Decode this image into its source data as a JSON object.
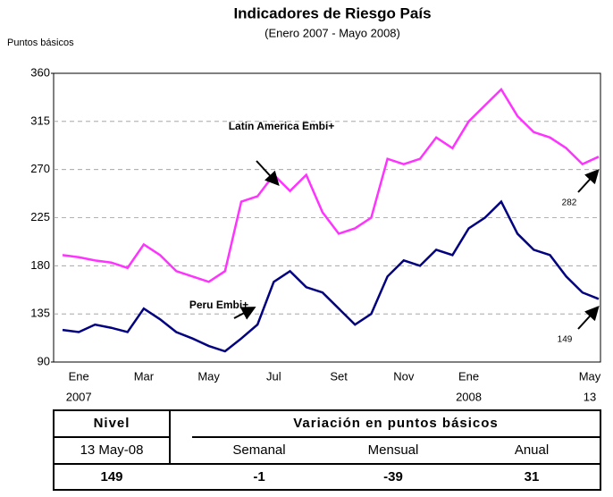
{
  "chart_data": {
    "type": "line",
    "title": "Indicadores de Riesgo País",
    "subtitle": "(Enero 2007 - Mayo 2008)",
    "y_label": "Puntos básicos",
    "categories": [
      null,
      [
        "Ene",
        "2007"
      ],
      null,
      null,
      null,
      [
        "Mar"
      ],
      null,
      null,
      null,
      [
        "May"
      ],
      null,
      null,
      null,
      [
        "Jul"
      ],
      null,
      null,
      null,
      [
        "Set"
      ],
      null,
      null,
      null,
      [
        "Nov"
      ],
      null,
      null,
      null,
      [
        "Ene",
        "2008"
      ],
      null,
      null,
      null,
      null,
      null,
      null,
      null,
      [
        "May",
        "13"
      ]
    ],
    "series": [
      {
        "name": "Latin America Embi+",
        "color": "#ff33ff",
        "values": [
          190,
          188,
          185,
          183,
          178,
          200,
          190,
          175,
          170,
          165,
          175,
          240,
          245,
          265,
          250,
          265,
          230,
          210,
          215,
          225,
          280,
          275,
          280,
          300,
          290,
          315,
          330,
          345,
          320,
          305,
          300,
          290,
          275,
          282
        ]
      },
      {
        "name": "Peru Embi+",
        "color": "#000080",
        "values": [
          120,
          118,
          125,
          122,
          118,
          140,
          130,
          118,
          112,
          105,
          100,
          112,
          125,
          165,
          175,
          160,
          155,
          140,
          125,
          135,
          170,
          185,
          180,
          195,
          190,
          215,
          225,
          240,
          210,
          195,
          190,
          170,
          155,
          149
        ]
      }
    ],
    "annotations": [
      "282",
      "149"
    ],
    "ylim": [
      90,
      360
    ],
    "yticks": [
      90,
      135,
      180,
      225,
      270,
      315,
      360
    ],
    "grid": true
  },
  "table": {
    "header": [
      "Nivel",
      "Variación en puntos básicos"
    ],
    "rows": [
      [
        "13 May-08",
        "Semanal",
        "Mensual",
        "Anual"
      ],
      [
        "149",
        "-1",
        "-39",
        "31"
      ]
    ]
  }
}
